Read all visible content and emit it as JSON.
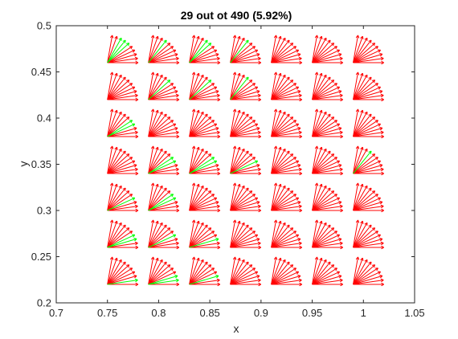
{
  "chart_data": {
    "type": "quiver",
    "title": "29 out ot 490 (5.92%)",
    "xlabel": "x",
    "ylabel": "y",
    "xlim": [
      0.7,
      1.05
    ],
    "ylim": [
      0.2,
      0.5
    ],
    "xticks": [
      0.7,
      0.75,
      0.8,
      0.85,
      0.9,
      0.95,
      1.0,
      1.05
    ],
    "xtick_labels": [
      "0.7",
      "0.75",
      "0.8",
      "0.85",
      "0.9",
      "0.95",
      "1",
      "1.05"
    ],
    "yticks": [
      0.2,
      0.25,
      0.3,
      0.35,
      0.4,
      0.45,
      0.5
    ],
    "ytick_labels": [
      "0.2",
      "0.25",
      "0.3",
      "0.35",
      "0.4",
      "0.45",
      "0.5"
    ],
    "grid": false,
    "box": true,
    "origins_x": [
      0.75,
      0.79,
      0.83,
      0.87,
      0.91,
      0.95,
      0.99
    ],
    "origins_y": [
      0.22,
      0.26,
      0.3,
      0.34,
      0.38,
      0.42,
      0.46
    ],
    "angles_deg": [
      0,
      9,
      18,
      27,
      36,
      45,
      54,
      63,
      72,
      81
    ],
    "arrow_length": 0.03,
    "highlighted": [
      [
        0,
        6,
        5
      ],
      [
        0,
        6,
        6
      ],
      [
        0,
        6,
        7
      ],
      [
        1,
        6,
        6
      ],
      [
        2,
        6,
        5
      ],
      [
        2,
        6,
        6
      ],
      [
        3,
        6,
        6
      ],
      [
        1,
        5,
        5
      ],
      [
        2,
        5,
        5
      ],
      [
        3,
        5,
        6
      ],
      [
        0,
        4,
        3
      ],
      [
        0,
        4,
        4
      ],
      [
        1,
        3,
        3
      ],
      [
        1,
        3,
        4
      ],
      [
        2,
        3,
        3
      ],
      [
        2,
        3,
        4
      ],
      [
        3,
        3,
        3
      ],
      [
        6,
        3,
        6
      ],
      [
        0,
        2,
        3
      ],
      [
        1,
        2,
        3
      ],
      [
        1,
        2,
        4
      ],
      [
        0,
        1,
        2
      ],
      [
        0,
        1,
        3
      ],
      [
        1,
        1,
        3
      ],
      [
        2,
        1,
        2
      ],
      [
        0,
        0,
        1
      ],
      [
        1,
        0,
        1
      ],
      [
        1,
        0,
        2
      ],
      [
        2,
        0,
        2
      ]
    ],
    "colors": {
      "normal": "#ff0000",
      "highlighted": "#00ff00"
    }
  }
}
